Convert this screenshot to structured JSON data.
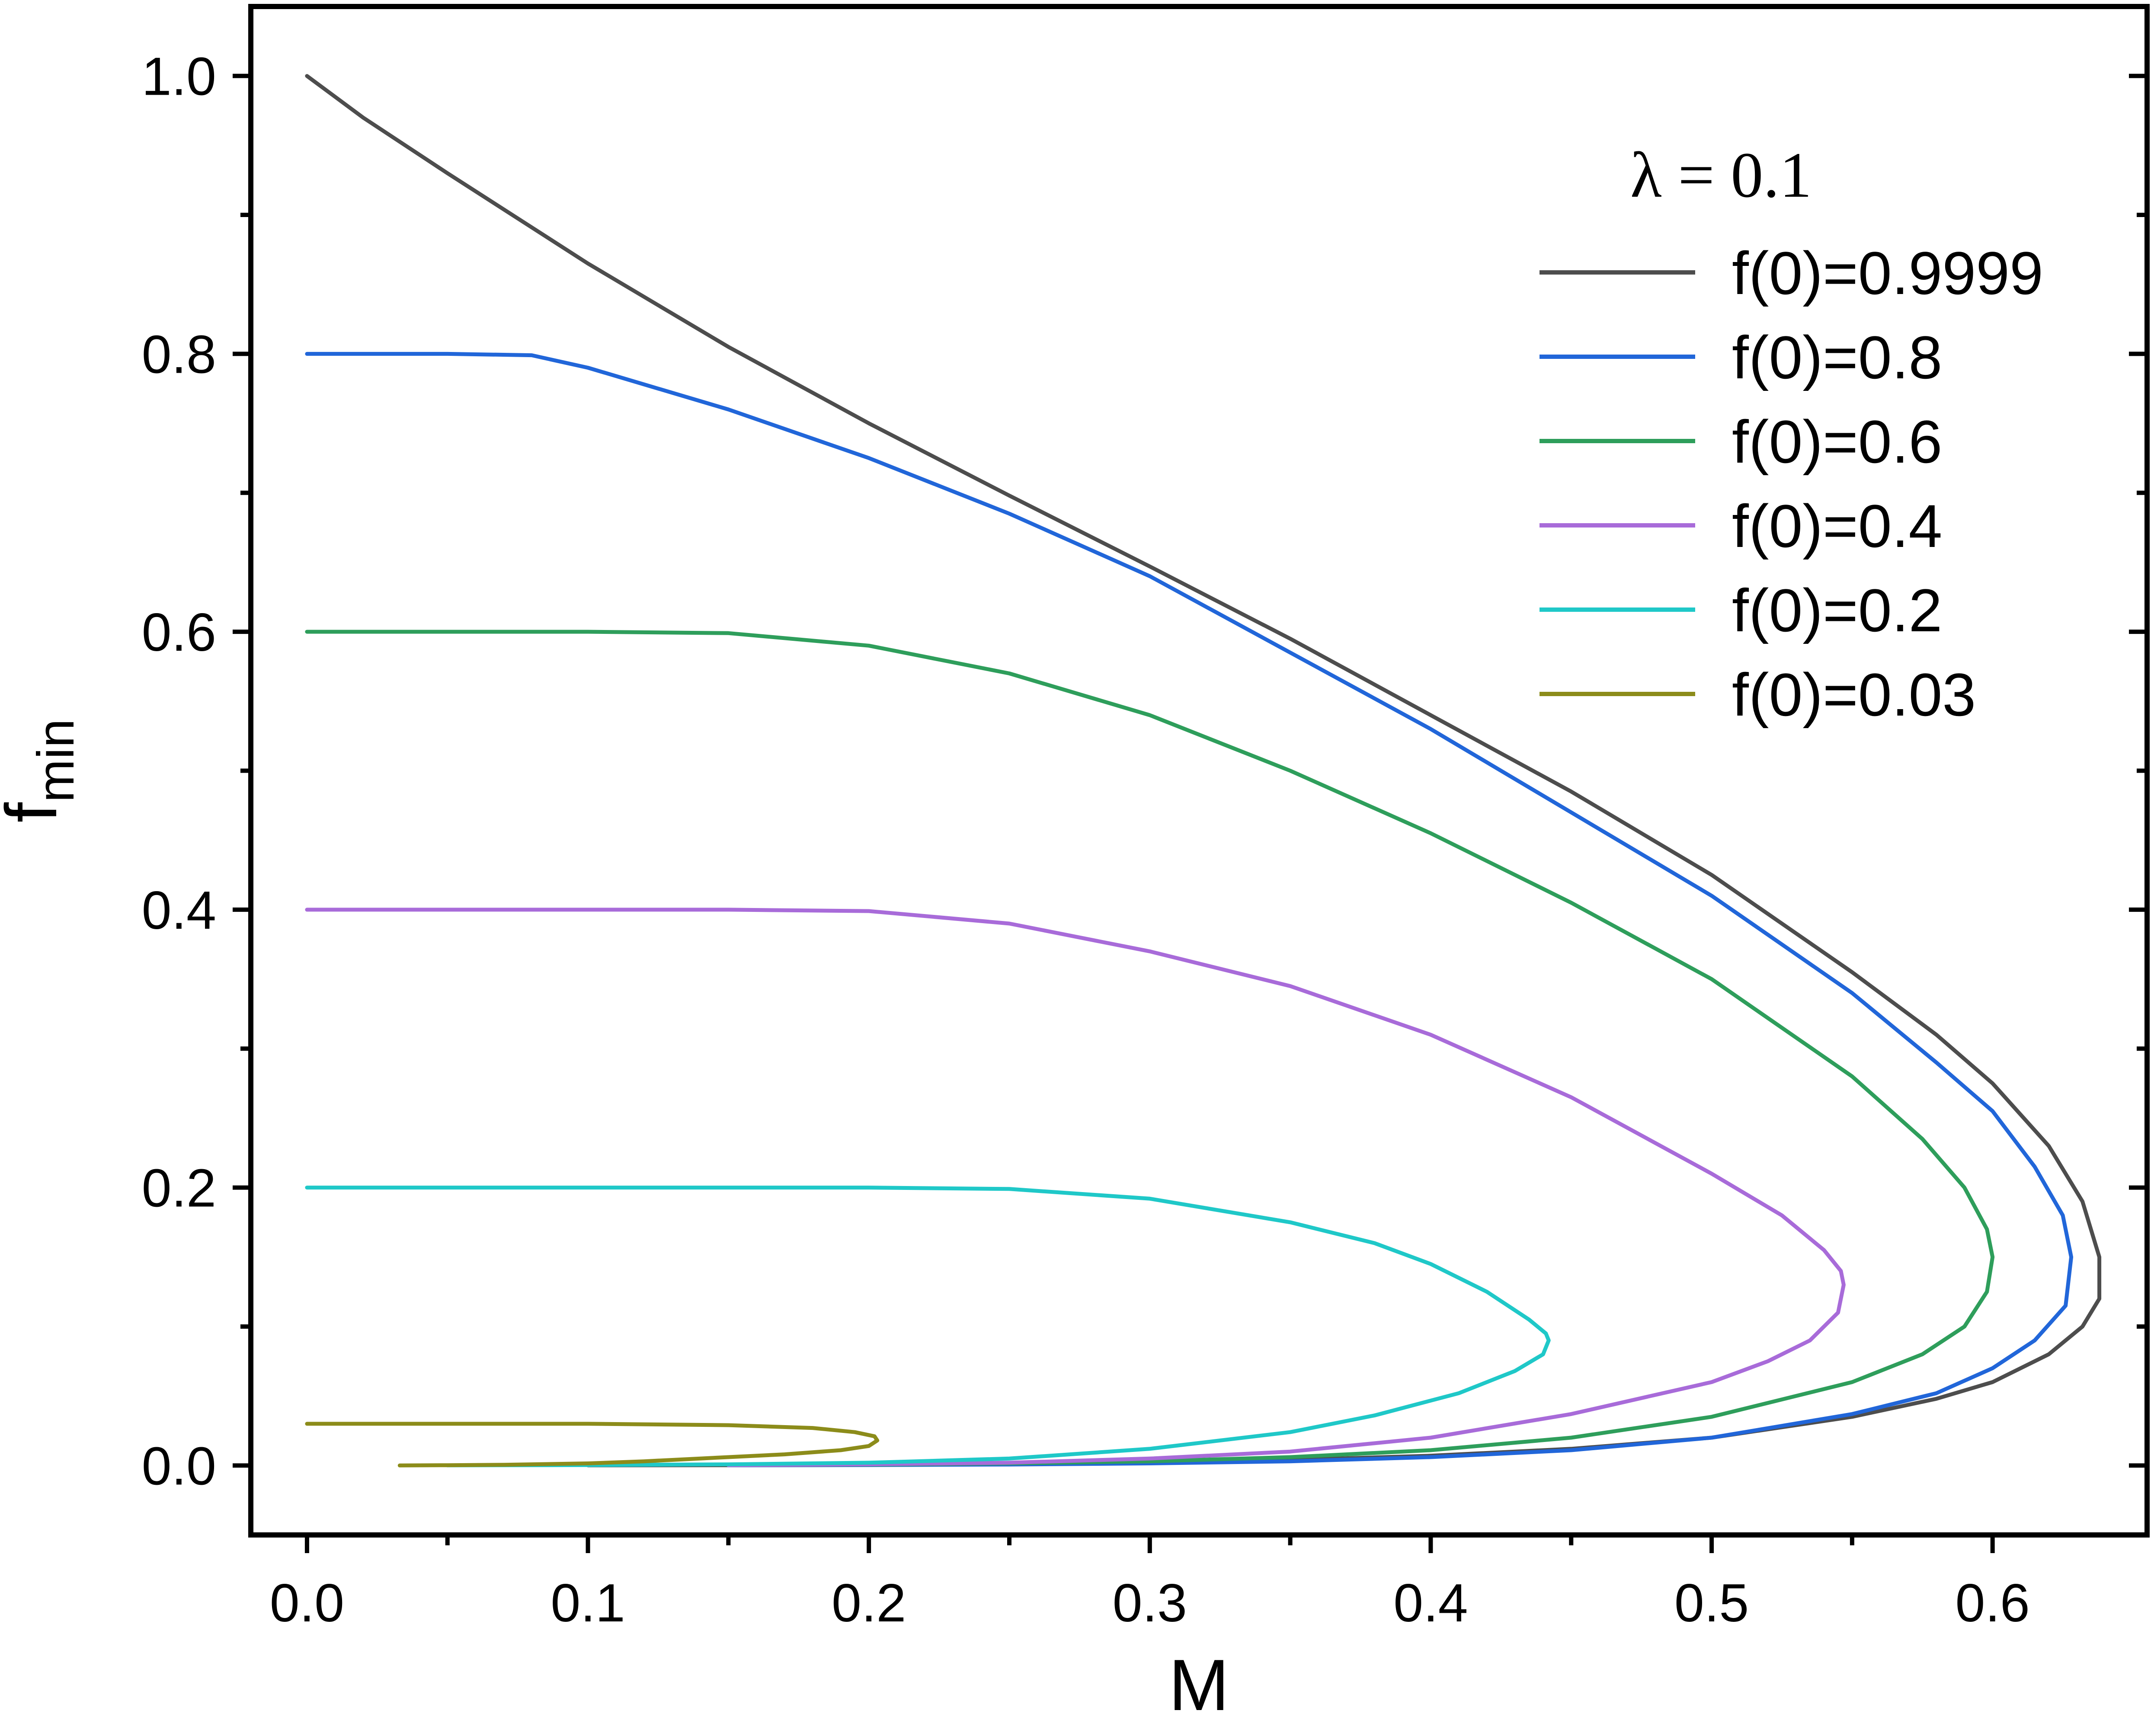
{
  "chart_data": {
    "type": "line",
    "title": "",
    "xlabel": "M",
    "ylabel": "f",
    "ylabel_subscript": "min",
    "xlim": [
      -0.02,
      0.655
    ],
    "ylim": [
      -0.05,
      1.05
    ],
    "xticks": [
      0.0,
      0.1,
      0.2,
      0.3,
      0.4,
      0.5,
      0.6
    ],
    "xtick_labels": [
      "0.0",
      "0.1",
      "0.2",
      "0.3",
      "0.4",
      "0.5",
      "0.6"
    ],
    "yticks": [
      0.0,
      0.2,
      0.4,
      0.6,
      0.8,
      1.0
    ],
    "ytick_labels": [
      "0.0",
      "0.2",
      "0.4",
      "0.6",
      "0.8",
      "1.0"
    ],
    "grid": false,
    "legend_title": "λ = 0.1",
    "legend_placement": "top-right",
    "series": [
      {
        "name": "f(0)=0.9999",
        "color": "#4d4d4d",
        "x": [
          0.0,
          0.02,
          0.05,
          0.1,
          0.15,
          0.2,
          0.25,
          0.3,
          0.35,
          0.4,
          0.45,
          0.5,
          0.55,
          0.58,
          0.6,
          0.62,
          0.632,
          0.638,
          0.638,
          0.632,
          0.62,
          0.6,
          0.58,
          0.55,
          0.5,
          0.45,
          0.4,
          0.35,
          0.3,
          0.25,
          0.2,
          0.15,
          0.1
        ],
        "y": [
          1.0,
          0.97,
          0.93,
          0.865,
          0.805,
          0.75,
          0.698,
          0.647,
          0.595,
          0.54,
          0.485,
          0.425,
          0.355,
          0.31,
          0.275,
          0.23,
          0.19,
          0.15,
          0.12,
          0.1,
          0.08,
          0.06,
          0.048,
          0.035,
          0.02,
          0.012,
          0.007,
          0.004,
          0.002,
          0.001,
          0.0005,
          0.0002,
          0.0001
        ]
      },
      {
        "name": "f(0)=0.8",
        "color": "#2166d9",
        "x": [
          0.0,
          0.05,
          0.08,
          0.1,
          0.15,
          0.2,
          0.25,
          0.3,
          0.35,
          0.4,
          0.45,
          0.5,
          0.55,
          0.58,
          0.6,
          0.615,
          0.625,
          0.628,
          0.626,
          0.615,
          0.6,
          0.58,
          0.55,
          0.5,
          0.45,
          0.4,
          0.35,
          0.3,
          0.25,
          0.2,
          0.15
        ],
        "y": [
          0.8,
          0.8,
          0.799,
          0.79,
          0.76,
          0.725,
          0.685,
          0.64,
          0.585,
          0.53,
          0.47,
          0.41,
          0.34,
          0.29,
          0.255,
          0.215,
          0.18,
          0.15,
          0.115,
          0.09,
          0.07,
          0.052,
          0.037,
          0.02,
          0.011,
          0.006,
          0.003,
          0.0015,
          0.0007,
          0.0003,
          0.0001
        ]
      },
      {
        "name": "f(0)=0.6",
        "color": "#2e9e5b",
        "x": [
          0.0,
          0.05,
          0.1,
          0.15,
          0.2,
          0.25,
          0.3,
          0.35,
          0.4,
          0.45,
          0.5,
          0.55,
          0.575,
          0.59,
          0.598,
          0.6,
          0.598,
          0.59,
          0.575,
          0.55,
          0.5,
          0.45,
          0.4,
          0.35,
          0.3,
          0.25,
          0.2,
          0.15
        ],
        "y": [
          0.6,
          0.6,
          0.6,
          0.599,
          0.59,
          0.57,
          0.54,
          0.5,
          0.455,
          0.405,
          0.35,
          0.28,
          0.235,
          0.2,
          0.17,
          0.15,
          0.125,
          0.1,
          0.08,
          0.06,
          0.035,
          0.02,
          0.011,
          0.006,
          0.003,
          0.0015,
          0.0006,
          0.0002
        ]
      },
      {
        "name": "f(0)=0.4",
        "color": "#a86bd9",
        "x": [
          0.0,
          0.05,
          0.1,
          0.15,
          0.2,
          0.25,
          0.3,
          0.35,
          0.4,
          0.45,
          0.5,
          0.525,
          0.54,
          0.546,
          0.547,
          0.545,
          0.535,
          0.52,
          0.5,
          0.45,
          0.4,
          0.35,
          0.3,
          0.25,
          0.2,
          0.15
        ],
        "y": [
          0.4,
          0.4,
          0.4,
          0.4,
          0.399,
          0.39,
          0.37,
          0.345,
          0.31,
          0.265,
          0.21,
          0.18,
          0.155,
          0.14,
          0.13,
          0.11,
          0.09,
          0.075,
          0.06,
          0.037,
          0.02,
          0.01,
          0.005,
          0.002,
          0.0008,
          0.0002
        ]
      },
      {
        "name": "f(0)=0.2",
        "color": "#1fc8c8",
        "x": [
          0.0,
          0.05,
          0.1,
          0.15,
          0.2,
          0.25,
          0.3,
          0.35,
          0.38,
          0.4,
          0.42,
          0.435,
          0.441,
          0.442,
          0.44,
          0.43,
          0.41,
          0.38,
          0.35,
          0.3,
          0.25,
          0.2,
          0.15,
          0.1,
          0.05
        ],
        "y": [
          0.2,
          0.2,
          0.2,
          0.2,
          0.2,
          0.199,
          0.192,
          0.175,
          0.16,
          0.145,
          0.125,
          0.105,
          0.095,
          0.09,
          0.08,
          0.068,
          0.052,
          0.036,
          0.024,
          0.012,
          0.005,
          0.002,
          0.0008,
          0.0003,
          0.0001
        ]
      },
      {
        "name": "f(0)=0.03",
        "color": "#8c8c1a",
        "x": [
          0.0,
          0.05,
          0.1,
          0.15,
          0.18,
          0.195,
          0.202,
          0.203,
          0.2,
          0.19,
          0.17,
          0.15,
          0.12,
          0.1,
          0.07,
          0.05,
          0.033
        ],
        "y": [
          0.03,
          0.03,
          0.03,
          0.029,
          0.027,
          0.024,
          0.021,
          0.018,
          0.014,
          0.011,
          0.008,
          0.006,
          0.003,
          0.0015,
          0.0005,
          0.0002,
          0.0
        ]
      }
    ]
  }
}
